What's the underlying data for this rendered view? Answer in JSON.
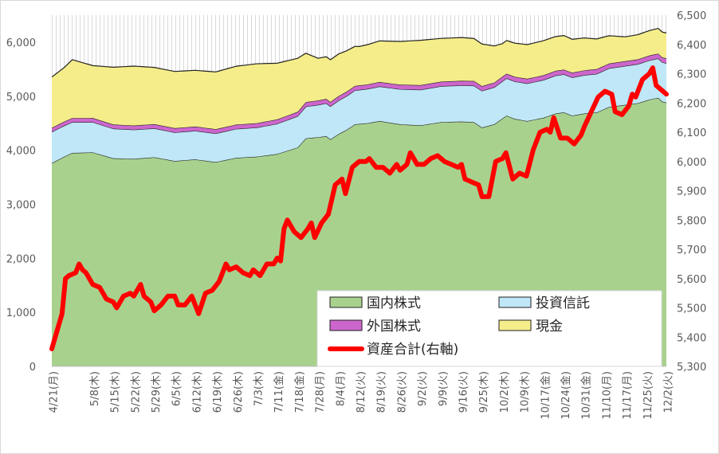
{
  "chart_data": {
    "type": "area",
    "stacked": true,
    "title": "",
    "xlabel": "",
    "ylabel": "",
    "ylim": [
      0,
      6500
    ],
    "y_ticks": [
      0,
      1000,
      2000,
      3000,
      4000,
      5000,
      6000
    ],
    "y_tick_labels": [
      "0",
      "1,000",
      "2,000",
      "3,000",
      "4,000",
      "5,000",
      "6,000"
    ],
    "y2lim": [
      5300,
      6500
    ],
    "y2_ticks": [
      5300,
      5400,
      5500,
      5600,
      5700,
      5800,
      5900,
      6000,
      6100,
      6200,
      6300,
      6400,
      6500
    ],
    "y2_tick_labels": [
      "5,300",
      "5,400",
      "5,500",
      "5,600",
      "5,700",
      "5,800",
      "5,900",
      "6,000",
      "6,100",
      "6,200",
      "6,300",
      "6,400",
      "6,500"
    ],
    "grid": false,
    "legend_position": "bottom-right",
    "x_tick_labels": [
      "4/21(月)",
      "5/8(木)",
      "5/15(木)",
      "5/22(木)",
      "5/29(木)",
      "6/5(木)",
      "6/12(木)",
      "6/19(木)",
      "6/26(木)",
      "7/3(木)",
      "7/11(金)",
      "7/18(金)",
      "7/28(月)",
      "8/4(月)",
      "8/12(火)",
      "8/19(火)",
      "8/26(火)",
      "9/2(火)",
      "9/9(火)",
      "9/16(火)",
      "9/25(木)",
      "10/2(木)",
      "10/9(木)",
      "10/17(金)",
      "10/24(金)",
      "10/31(金)",
      "11/10(月)",
      "11/17(月)",
      "11/25(火)",
      "12/2(火)"
    ],
    "x_tick_index": [
      0,
      10,
      15,
      20,
      25,
      30,
      35,
      40,
      45,
      50,
      55,
      60,
      65,
      70,
      75,
      80,
      85,
      90,
      95,
      100,
      105,
      110,
      115,
      120,
      125,
      130,
      135,
      140,
      145,
      150
    ],
    "series": [
      {
        "name": "国内株式",
        "axis": "left",
        "color": "#a9d18e",
        "stroke": "#70ad47",
        "keyframes": [
          [
            0,
            3760
          ],
          [
            3,
            3880
          ],
          [
            5,
            3950
          ],
          [
            10,
            3960
          ],
          [
            15,
            3850
          ],
          [
            20,
            3840
          ],
          [
            25,
            3870
          ],
          [
            30,
            3800
          ],
          [
            35,
            3830
          ],
          [
            40,
            3780
          ],
          [
            45,
            3860
          ],
          [
            50,
            3880
          ],
          [
            55,
            3930
          ],
          [
            60,
            4050
          ],
          [
            62,
            4220
          ],
          [
            65,
            4240
          ],
          [
            67,
            4260
          ],
          [
            68,
            4200
          ],
          [
            70,
            4300
          ],
          [
            72,
            4380
          ],
          [
            74,
            4480
          ],
          [
            77,
            4500
          ],
          [
            80,
            4540
          ],
          [
            85,
            4480
          ],
          [
            90,
            4460
          ],
          [
            95,
            4520
          ],
          [
            100,
            4530
          ],
          [
            103,
            4520
          ],
          [
            105,
            4420
          ],
          [
            108,
            4480
          ],
          [
            111,
            4640
          ],
          [
            113,
            4580
          ],
          [
            116,
            4540
          ],
          [
            120,
            4600
          ],
          [
            123,
            4680
          ],
          [
            125,
            4700
          ],
          [
            127,
            4640
          ],
          [
            130,
            4680
          ],
          [
            133,
            4700
          ],
          [
            136,
            4800
          ],
          [
            139,
            4830
          ],
          [
            141,
            4850
          ],
          [
            143,
            4870
          ],
          [
            146,
            4940
          ],
          [
            148,
            4970
          ],
          [
            149,
            4900
          ],
          [
            150,
            4880
          ]
        ]
      },
      {
        "name": "投資信託",
        "axis": "left",
        "color": "#bfe7f7",
        "stroke": "#2e75b6",
        "keyframes": [
          [
            0,
            580
          ],
          [
            5,
            570
          ],
          [
            10,
            560
          ],
          [
            20,
            540
          ],
          [
            30,
            530
          ],
          [
            40,
            530
          ],
          [
            50,
            540
          ],
          [
            60,
            580
          ],
          [
            70,
            620
          ],
          [
            80,
            640
          ],
          [
            90,
            660
          ],
          [
            100,
            670
          ],
          [
            110,
            690
          ],
          [
            120,
            700
          ],
          [
            130,
            710
          ],
          [
            140,
            720
          ],
          [
            150,
            730
          ]
        ]
      },
      {
        "name": "外国株式",
        "axis": "left",
        "color": "#cc66cc",
        "stroke": "#7030a0",
        "keyframes": [
          [
            0,
            75
          ],
          [
            50,
            80
          ],
          [
            100,
            85
          ],
          [
            150,
            90
          ]
        ]
      },
      {
        "name": "現金",
        "axis": "left",
        "color": "#f5ed8a",
        "stroke": "#b8a400",
        "keyframes": [
          [
            0,
            940
          ],
          [
            3,
            1000
          ],
          [
            5,
            1080
          ],
          [
            10,
            970
          ],
          [
            15,
            1060
          ],
          [
            20,
            1100
          ],
          [
            25,
            1050
          ],
          [
            30,
            1050
          ],
          [
            35,
            1040
          ],
          [
            40,
            1060
          ],
          [
            45,
            1080
          ],
          [
            50,
            1100
          ],
          [
            55,
            1040
          ],
          [
            60,
            990
          ],
          [
            65,
            780
          ],
          [
            70,
            780
          ],
          [
            75,
            720
          ],
          [
            80,
            760
          ],
          [
            85,
            800
          ],
          [
            90,
            830
          ],
          [
            95,
            800
          ],
          [
            100,
            800
          ],
          [
            105,
            780
          ],
          [
            110,
            610
          ],
          [
            115,
            630
          ],
          [
            120,
            640
          ],
          [
            125,
            630
          ],
          [
            130,
            600
          ],
          [
            135,
            530
          ],
          [
            140,
            450
          ],
          [
            145,
            460
          ],
          [
            150,
            470
          ]
        ]
      },
      {
        "name": "資産合計(右軸)",
        "axis": "right",
        "color": "#ff0000",
        "stroke": "#ff0000",
        "keyframes": [
          [
            0,
            5360
          ],
          [
            3,
            5480
          ],
          [
            4,
            5600
          ],
          [
            5,
            5610
          ],
          [
            7,
            5620
          ],
          [
            8,
            5650
          ],
          [
            9,
            5630
          ],
          [
            10,
            5620
          ],
          [
            12,
            5580
          ],
          [
            14,
            5570
          ],
          [
            16,
            5530
          ],
          [
            18,
            5520
          ],
          [
            19,
            5500
          ],
          [
            21,
            5540
          ],
          [
            23,
            5550
          ],
          [
            24,
            5540
          ],
          [
            26,
            5580
          ],
          [
            27,
            5540
          ],
          [
            29,
            5520
          ],
          [
            30,
            5490
          ],
          [
            32,
            5510
          ],
          [
            34,
            5540
          ],
          [
            36,
            5540
          ],
          [
            37,
            5510
          ],
          [
            39,
            5510
          ],
          [
            41,
            5540
          ],
          [
            43,
            5480
          ],
          [
            45,
            5550
          ],
          [
            47,
            5560
          ],
          [
            49,
            5590
          ],
          [
            51,
            5650
          ],
          [
            52,
            5630
          ],
          [
            54,
            5640
          ],
          [
            56,
            5620
          ],
          [
            58,
            5610
          ],
          [
            59,
            5630
          ],
          [
            61,
            5610
          ],
          [
            63,
            5650
          ],
          [
            65,
            5650
          ],
          [
            66,
            5670
          ],
          [
            67,
            5660
          ],
          [
            68,
            5770
          ],
          [
            69,
            5800
          ],
          [
            71,
            5760
          ],
          [
            73,
            5740
          ],
          [
            75,
            5770
          ],
          [
            76,
            5790
          ],
          [
            77,
            5740
          ],
          [
            79,
            5790
          ],
          [
            81,
            5820
          ],
          [
            83,
            5920
          ],
          [
            85,
            5940
          ],
          [
            86,
            5890
          ],
          [
            88,
            5980
          ],
          [
            90,
            6000
          ],
          [
            92,
            6000
          ],
          [
            93,
            6010
          ],
          [
            95,
            5980
          ],
          [
            97,
            5980
          ],
          [
            99,
            5960
          ],
          [
            101,
            5990
          ],
          [
            102,
            5970
          ],
          [
            104,
            5990
          ],
          [
            105,
            6030
          ],
          [
            107,
            5990
          ],
          [
            109,
            5990
          ],
          [
            111,
            6010
          ],
          [
            113,
            6020
          ],
          [
            115,
            6000
          ],
          [
            117,
            5990
          ],
          [
            119,
            5980
          ],
          [
            120,
            5990
          ],
          [
            121,
            5940
          ],
          [
            123,
            5930
          ],
          [
            125,
            5920
          ],
          [
            126,
            5880
          ],
          [
            128,
            5880
          ],
          [
            130,
            6000
          ],
          [
            132,
            6010
          ],
          [
            133,
            6030
          ],
          [
            135,
            5940
          ],
          [
            137,
            5960
          ],
          [
            139,
            5950
          ],
          [
            141,
            6040
          ],
          [
            143,
            6100
          ],
          [
            145,
            6110
          ],
          [
            146,
            6100
          ],
          [
            147,
            6150
          ],
          [
            149,
            6080
          ],
          [
            151,
            6080
          ],
          [
            153,
            6060
          ],
          [
            155,
            6090
          ],
          [
            156,
            6120
          ],
          [
            158,
            6170
          ],
          [
            160,
            6220
          ],
          [
            162,
            6240
          ],
          [
            164,
            6230
          ],
          [
            165,
            6170
          ],
          [
            167,
            6160
          ],
          [
            169,
            6190
          ],
          [
            170,
            6230
          ],
          [
            171,
            6220
          ],
          [
            173,
            6280
          ],
          [
            175,
            6300
          ],
          [
            176,
            6320
          ],
          [
            177,
            6260
          ],
          [
            179,
            6240
          ],
          [
            180,
            6230
          ]
        ]
      }
    ]
  }
}
